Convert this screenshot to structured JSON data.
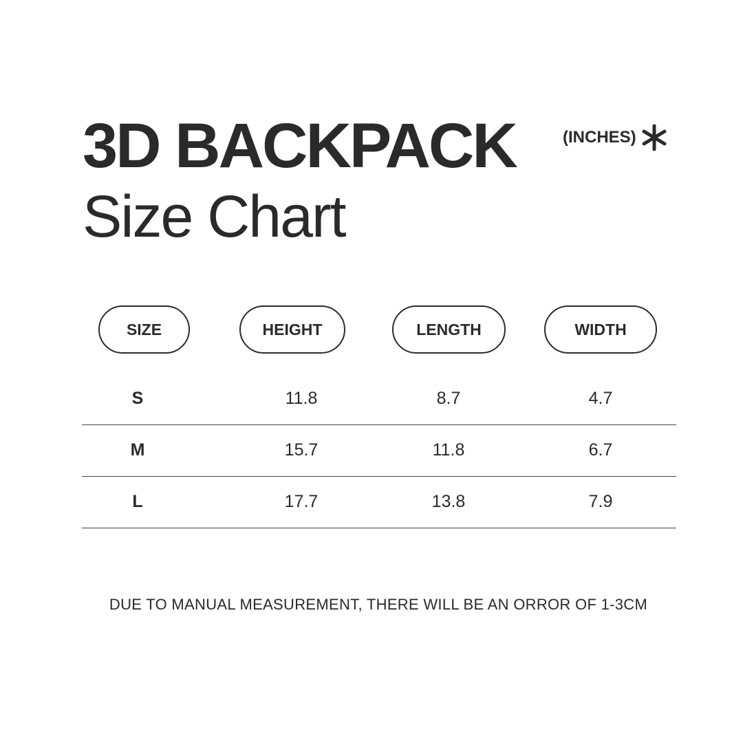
{
  "header": {
    "title": "3D BACKPACK",
    "subtitle": "Size Chart",
    "unit": "(INCHES)",
    "unit_icon": "asterisk-icon"
  },
  "table": {
    "columns": [
      "SIZE",
      "HEIGHT",
      "LENGTH",
      "WIDTH"
    ],
    "rows": [
      [
        "S",
        "11.8",
        "8.7",
        "4.7"
      ],
      [
        "M",
        "15.7",
        "11.8",
        "6.7"
      ],
      [
        "L",
        "17.7",
        "13.8",
        "7.9"
      ]
    ]
  },
  "footer": {
    "note": "DUE TO MANUAL MEASUREMENT, THERE WILL BE AN ORROR OF 1-3CM"
  }
}
